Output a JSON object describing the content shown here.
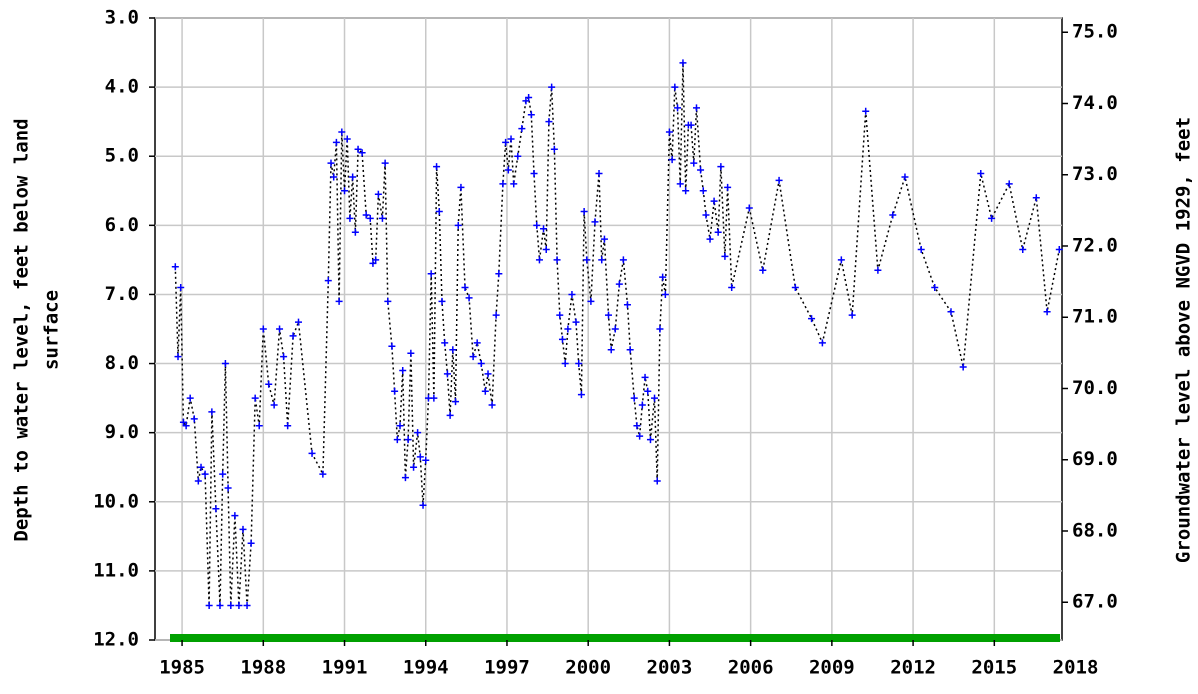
{
  "chart_data": {
    "type": "line",
    "y_label": [
      "Depth to water level, feet below land",
      "surface"
    ],
    "y2_label": "Groundwater level above NGVD 1929, feet",
    "x": [
      1984.75,
      1984.85,
      1984.95,
      1985.05,
      1985.15,
      1985.3,
      1985.45,
      1985.6,
      1985.7,
      1985.85,
      1986.0,
      1986.1,
      1986.25,
      1986.4,
      1986.5,
      1986.6,
      1986.7,
      1986.8,
      1986.95,
      1987.1,
      1987.25,
      1987.4,
      1987.55,
      1987.7,
      1987.85,
      1988.0,
      1988.2,
      1988.4,
      1988.6,
      1988.75,
      1988.9,
      1989.1,
      1989.3,
      1989.8,
      1990.2,
      1990.4,
      1990.5,
      1990.6,
      1990.7,
      1990.8,
      1990.9,
      1991.0,
      1991.1,
      1991.2,
      1991.3,
      1991.4,
      1991.5,
      1991.65,
      1991.8,
      1991.95,
      1992.05,
      1992.15,
      1992.25,
      1992.4,
      1992.5,
      1992.6,
      1992.75,
      1992.85,
      1992.95,
      1993.05,
      1993.15,
      1993.25,
      1993.35,
      1993.45,
      1993.55,
      1993.7,
      1993.8,
      1993.9,
      1994.0,
      1994.1,
      1994.2,
      1994.3,
      1994.4,
      1994.5,
      1994.6,
      1994.7,
      1994.8,
      1994.9,
      1995.0,
      1995.1,
      1995.2,
      1995.3,
      1995.45,
      1995.6,
      1995.75,
      1995.9,
      1996.05,
      1996.2,
      1996.3,
      1996.45,
      1996.6,
      1996.7,
      1996.85,
      1996.95,
      1997.05,
      1997.15,
      1997.25,
      1997.4,
      1997.55,
      1997.7,
      1997.8,
      1997.9,
      1998.0,
      1998.1,
      1998.2,
      1998.35,
      1998.45,
      1998.55,
      1998.65,
      1998.75,
      1998.85,
      1998.95,
      1999.05,
      1999.15,
      1999.25,
      1999.4,
      1999.55,
      1999.65,
      1999.75,
      1999.85,
      1999.95,
      2000.1,
      2000.25,
      2000.4,
      2000.5,
      2000.6,
      2000.75,
      2000.85,
      2001.0,
      2001.15,
      2001.3,
      2001.45,
      2001.55,
      2001.7,
      2001.8,
      2001.9,
      2002.0,
      2002.1,
      2002.2,
      2002.3,
      2002.45,
      2002.55,
      2002.65,
      2002.75,
      2002.85,
      2003.0,
      2003.1,
      2003.2,
      2003.3,
      2003.4,
      2003.5,
      2003.6,
      2003.7,
      2003.8,
      2003.9,
      2004.0,
      2004.15,
      2004.25,
      2004.35,
      2004.5,
      2004.65,
      2004.8,
      2004.9,
      2005.05,
      2005.15,
      2005.3,
      2005.95,
      2006.45,
      2007.05,
      2007.65,
      2008.25,
      2008.65,
      2009.35,
      2009.75,
      2010.25,
      2010.7,
      2011.25,
      2011.7,
      2012.3,
      2012.8,
      2013.4,
      2013.85,
      2014.5,
      2014.9,
      2015.55,
      2016.05,
      2016.55,
      2016.95,
      2017.4
    ],
    "values": [
      6.6,
      7.9,
      6.9,
      8.85,
      8.9,
      8.5,
      8.8,
      9.7,
      9.5,
      9.6,
      11.5,
      8.7,
      10.1,
      11.5,
      9.6,
      8.0,
      9.8,
      11.5,
      10.2,
      11.5,
      10.4,
      11.5,
      10.6,
      8.5,
      8.9,
      7.5,
      8.3,
      8.6,
      7.5,
      7.9,
      8.9,
      7.6,
      7.4,
      9.3,
      9.6,
      6.8,
      5.1,
      5.3,
      4.8,
      7.1,
      4.65,
      5.5,
      4.75,
      5.9,
      5.3,
      6.1,
      4.9,
      4.95,
      5.85,
      5.9,
      6.55,
      6.5,
      5.55,
      5.9,
      5.1,
      7.1,
      7.75,
      8.4,
      9.1,
      8.9,
      8.1,
      9.65,
      9.1,
      7.85,
      9.5,
      9.0,
      9.35,
      10.05,
      9.4,
      8.5,
      6.7,
      8.5,
      5.15,
      5.8,
      7.1,
      7.7,
      8.15,
      8.75,
      7.8,
      8.55,
      6.0,
      5.45,
      6.9,
      7.05,
      7.9,
      7.7,
      8.0,
      8.4,
      8.15,
      8.6,
      7.3,
      6.7,
      5.4,
      4.8,
      5.2,
      4.75,
      5.4,
      5.0,
      4.6,
      4.2,
      4.15,
      4.4,
      5.25,
      6.0,
      6.5,
      6.05,
      6.35,
      4.5,
      4.0,
      4.9,
      6.5,
      7.3,
      7.65,
      8.0,
      7.5,
      7.0,
      7.4,
      8.0,
      8.45,
      5.8,
      6.5,
      7.1,
      5.95,
      5.25,
      6.5,
      6.2,
      7.3,
      7.8,
      7.5,
      6.85,
      6.5,
      7.15,
      7.8,
      8.5,
      8.9,
      9.05,
      8.6,
      8.2,
      8.4,
      9.1,
      8.5,
      9.7,
      7.5,
      6.75,
      7.0,
      4.65,
      5.05,
      4.0,
      4.3,
      5.4,
      3.65,
      5.5,
      4.55,
      4.55,
      5.1,
      4.3,
      5.2,
      5.5,
      5.85,
      6.2,
      5.65,
      6.1,
      5.15,
      6.45,
      5.45,
      6.9,
      5.75,
      6.65,
      5.35,
      6.9,
      7.35,
      7.7,
      6.5,
      7.3,
      4.35,
      6.65,
      5.85,
      5.3,
      6.35,
      6.9,
      7.25,
      8.05,
      5.25,
      5.9,
      5.4,
      6.35,
      5.6,
      7.25,
      6.35
    ],
    "color": "#0000ff",
    "line_color": "#000000",
    "xlim": [
      1984.0,
      2017.5
    ],
    "xticks": [
      1985,
      1988,
      1991,
      1994,
      1997,
      2000,
      2003,
      2006,
      2009,
      2012,
      2015,
      2018
    ],
    "ylim": [
      12.0,
      3.0
    ],
    "yticks": [
      {
        "value": 3,
        "label": "3.0"
      },
      {
        "value": 4,
        "label": "4.0"
      },
      {
        "value": 5,
        "label": "5.0"
      },
      {
        "value": 6,
        "label": "6.0"
      },
      {
        "value": 7,
        "label": "7.0"
      },
      {
        "value": 8,
        "label": "8.0"
      },
      {
        "value": 9,
        "label": "9.0"
      },
      {
        "value": 10,
        "label": "10.0"
      },
      {
        "value": 11,
        "label": "11.0"
      },
      {
        "value": 12,
        "label": "12.0"
      }
    ],
    "y2lim": [
      66.47,
      75.2
    ],
    "y2ticks": [
      {
        "value": 67,
        "label": "67.0"
      },
      {
        "value": 68,
        "label": "68.0"
      },
      {
        "value": 69,
        "label": "69.0"
      },
      {
        "value": 70,
        "label": "70.0"
      },
      {
        "value": 71,
        "label": "71.0"
      },
      {
        "value": 72,
        "label": "72.0"
      },
      {
        "value": 73,
        "label": "73.0"
      },
      {
        "value": 74,
        "label": "74.0"
      },
      {
        "value": 75,
        "label": "75.0"
      }
    ],
    "grid": true
  }
}
